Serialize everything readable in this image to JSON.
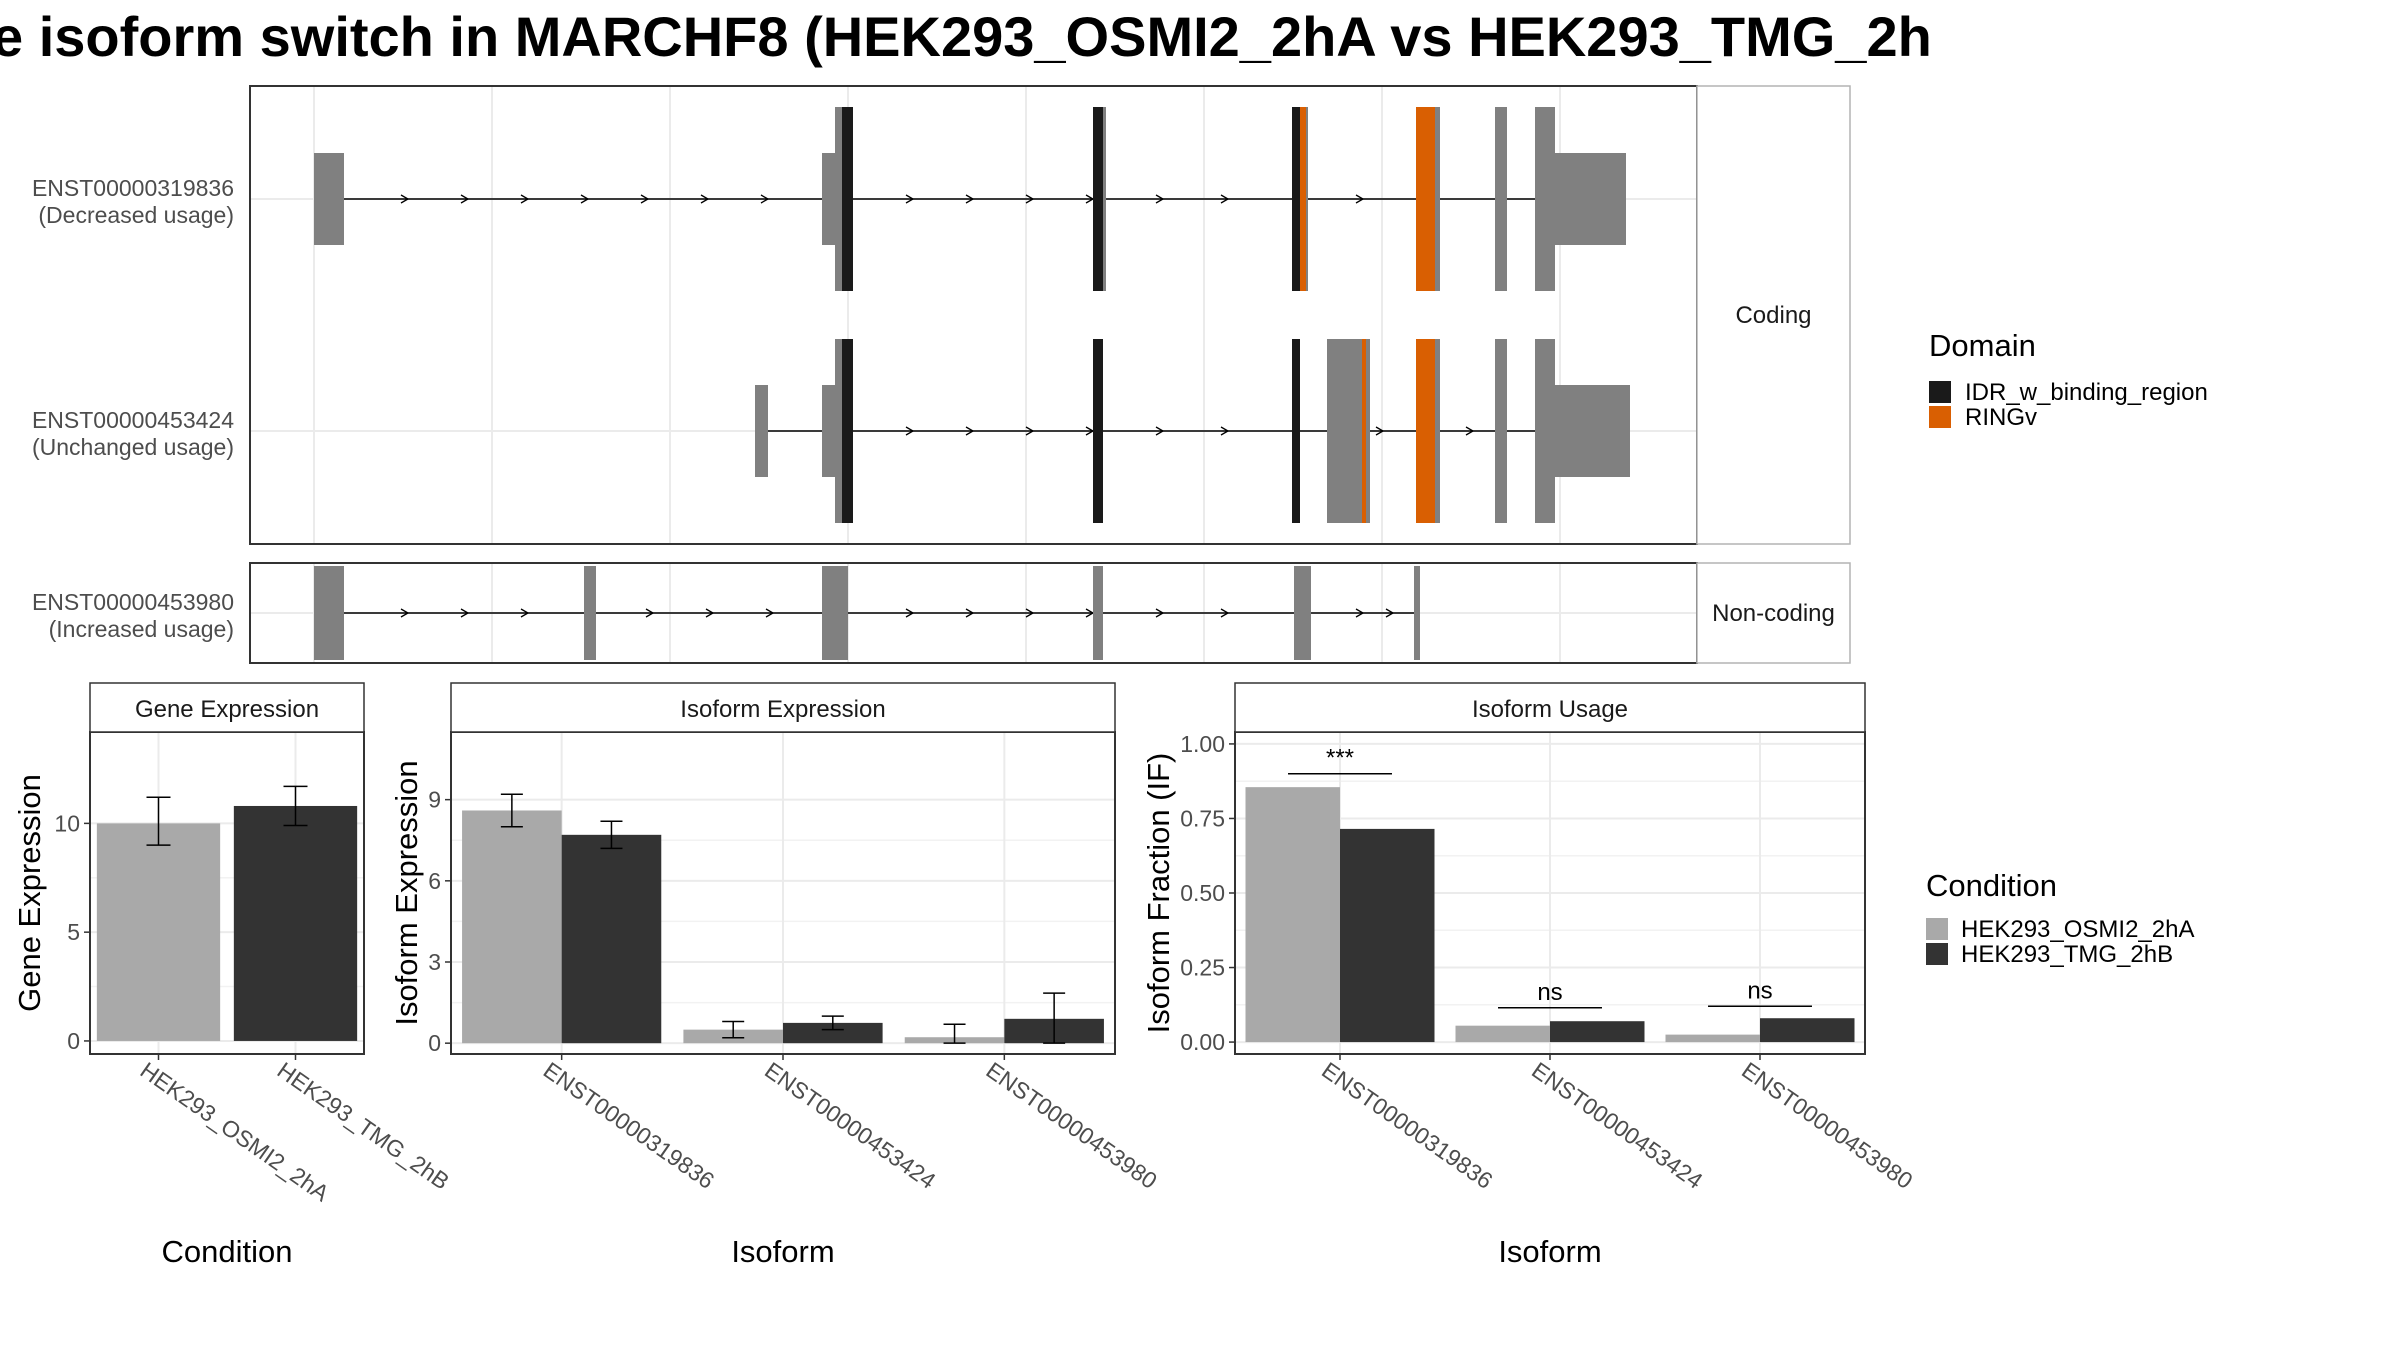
{
  "title": "e isoform switch in MARCHF8 (HEK293_OSMI2_2hA vs HEK293_TMG_2h",
  "colors": {
    "exon": "#808080",
    "idr": "#1a1a1a",
    "ring": "#d95f02",
    "cond_a": "#a9a9a9",
    "cond_b": "#333333",
    "strip_bg": "#ffffff",
    "grid": "#ebebeb",
    "panel_border": "#333333"
  },
  "transcript_panel": {
    "facets": [
      {
        "label": "Coding"
      },
      {
        "label": "Non-coding"
      }
    ],
    "transcripts": [
      {
        "id": "ENST00000319836",
        "usage": "(Decreased usage)"
      },
      {
        "id": "ENST00000453424",
        "usage": "(Unchanged usage)"
      },
      {
        "id": "ENST00000453980",
        "usage": "(Increased usage)"
      }
    ]
  },
  "domain_legend": {
    "title": "Domain",
    "items": [
      {
        "label": "IDR_w_binding_region",
        "color": "#1a1a1a"
      },
      {
        "label": "RINGv",
        "color": "#d95f02"
      }
    ]
  },
  "condition_legend": {
    "title": "Condition",
    "items": [
      {
        "label": "HEK293_OSMI2_2hA",
        "color": "#a9a9a9"
      },
      {
        "label": "HEK293_TMG_2hB",
        "color": "#333333"
      }
    ]
  },
  "chart_data": [
    {
      "type": "bar",
      "title": "Gene Expression",
      "xlabel": "Condition",
      "ylabel": "Gene Expression",
      "categories": [
        "HEK293_OSMI2_2hA",
        "HEK293_TMG_2hB"
      ],
      "values": [
        10.0,
        10.8
      ],
      "err_low": [
        9.0,
        9.9
      ],
      "err_high": [
        11.2,
        11.7
      ],
      "ylim": [
        -0.6,
        14.2
      ],
      "yticks": [
        "0",
        "5",
        "10"
      ],
      "ytick_values": [
        0,
        5,
        10
      ]
    },
    {
      "type": "bar",
      "title": "Isoform Expression",
      "xlabel": "Isoform",
      "ylabel": "Isoform Expression",
      "categories": [
        "ENST00000319836",
        "ENST00000453424",
        "ENST00000453980"
      ],
      "series": [
        {
          "name": "HEK293_OSMI2_2hA",
          "values": [
            8.6,
            0.5,
            0.22
          ],
          "err_low": [
            8.0,
            0.2,
            0.0
          ],
          "err_high": [
            9.2,
            0.8,
            0.7
          ]
        },
        {
          "name": "HEK293_TMG_2hB",
          "values": [
            7.7,
            0.75,
            0.9
          ],
          "err_low": [
            7.2,
            0.5,
            0.0
          ],
          "err_high": [
            8.2,
            1.0,
            1.85
          ]
        }
      ],
      "ylim": [
        -0.4,
        11.5
      ],
      "yticks": [
        "0",
        "3",
        "6",
        "9"
      ],
      "ytick_values": [
        0,
        3,
        6,
        9
      ]
    },
    {
      "type": "bar",
      "title": "Isoform Usage",
      "xlabel": "Isoform",
      "ylabel": "Isoform Fraction (IF)",
      "categories": [
        "ENST00000319836",
        "ENST00000453424",
        "ENST00000453980"
      ],
      "series": [
        {
          "name": "HEK293_OSMI2_2hA",
          "values": [
            0.855,
            0.055,
            0.025
          ]
        },
        {
          "name": "HEK293_TMG_2hB",
          "values": [
            0.715,
            0.07,
            0.08
          ]
        }
      ],
      "significance": [
        "***",
        "ns",
        "ns"
      ],
      "sig_y": [
        0.9,
        0.115,
        0.12
      ],
      "ylim": [
        -0.04,
        1.04
      ],
      "yticks": [
        "0.00",
        "0.25",
        "0.50",
        "0.75",
        "1.00"
      ],
      "ytick_values": [
        0,
        0.25,
        0.5,
        0.75,
        1.0
      ]
    }
  ]
}
